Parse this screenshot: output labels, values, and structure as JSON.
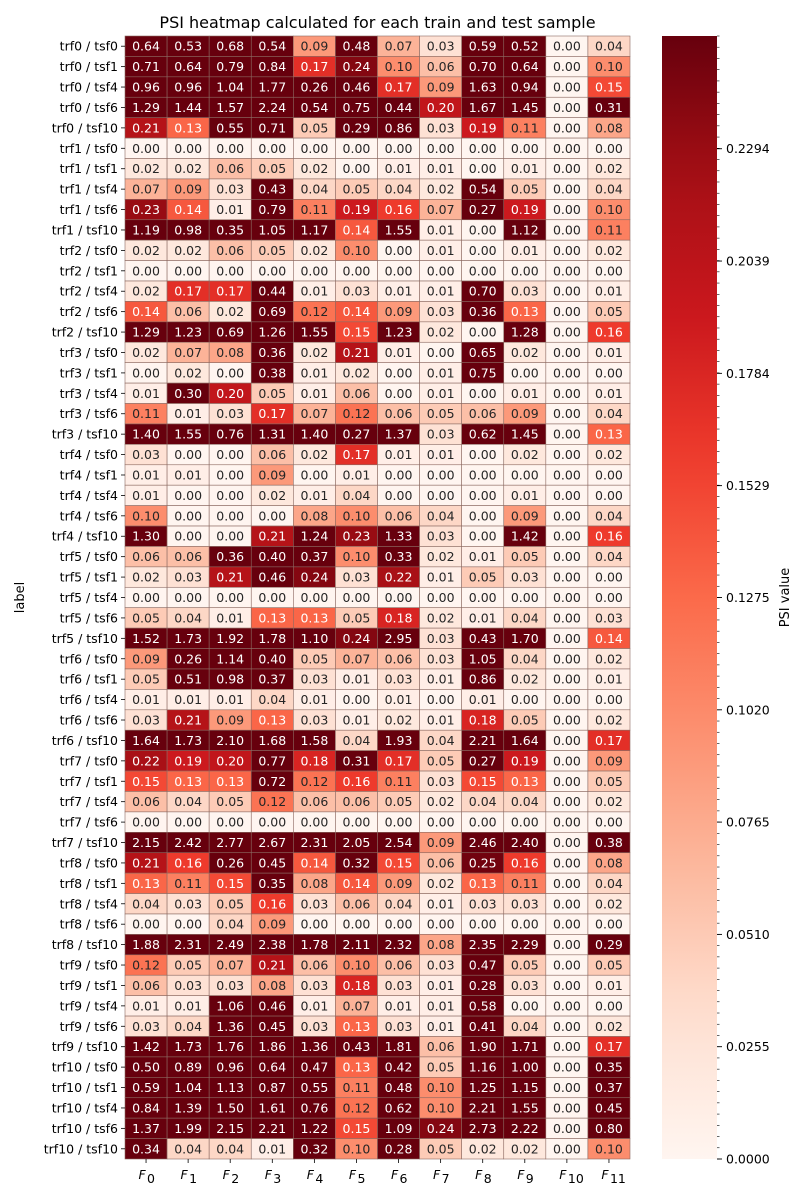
{
  "chart_data": {
    "type": "heatmap",
    "title": "PSI heatmap calculated for each train and test sample",
    "ylabel": "label",
    "colorbar_label": "PSI value",
    "colormap": "Reds",
    "vmin": 0.0,
    "vmax": 0.255,
    "colorbar_ticks": [
      "0.0000",
      "0.0255",
      "0.0510",
      "0.0765",
      "0.1020",
      "0.1275",
      "0.1529",
      "0.1784",
      "0.2039",
      "0.2294"
    ],
    "columns": [
      {
        "base": "F",
        "sub": "0"
      },
      {
        "base": "F",
        "sub": "1"
      },
      {
        "base": "F",
        "sub": "2"
      },
      {
        "base": "F",
        "sub": "3"
      },
      {
        "base": "F",
        "sub": "4"
      },
      {
        "base": "F",
        "sub": "5"
      },
      {
        "base": "F",
        "sub": "6"
      },
      {
        "base": "F",
        "sub": "7"
      },
      {
        "base": "F",
        "sub": "8"
      },
      {
        "base": "F",
        "sub": "9"
      },
      {
        "base": "F",
        "sub": "10"
      },
      {
        "base": "F",
        "sub": "11"
      }
    ],
    "rows": [
      {
        "label": "trf0 / tsf0",
        "values": [
          0.64,
          0.53,
          0.68,
          0.54,
          0.09,
          0.48,
          0.07,
          0.03,
          0.59,
          0.52,
          0.0,
          0.04
        ]
      },
      {
        "label": "trf0 / tsf1",
        "values": [
          0.71,
          0.64,
          0.79,
          0.84,
          0.17,
          0.24,
          0.1,
          0.06,
          0.7,
          0.64,
          0.0,
          0.1
        ]
      },
      {
        "label": "trf0 / tsf4",
        "values": [
          0.96,
          0.96,
          1.04,
          1.77,
          0.26,
          0.46,
          0.17,
          0.09,
          1.63,
          0.94,
          0.0,
          0.15
        ]
      },
      {
        "label": "trf0 / tsf6",
        "values": [
          1.29,
          1.44,
          1.57,
          2.24,
          0.54,
          0.75,
          0.44,
          0.2,
          1.67,
          1.45,
          0.0,
          0.31
        ]
      },
      {
        "label": "trf0 / tsf10",
        "values": [
          0.21,
          0.13,
          0.55,
          0.71,
          0.05,
          0.29,
          0.86,
          0.03,
          0.19,
          0.11,
          0.0,
          0.08
        ]
      },
      {
        "label": "trf1 / tsf0",
        "values": [
          0.0,
          0.0,
          0.0,
          0.0,
          0.0,
          0.0,
          0.0,
          0.0,
          0.0,
          0.0,
          0.0,
          0.0
        ]
      },
      {
        "label": "trf1 / tsf1",
        "values": [
          0.02,
          0.02,
          0.06,
          0.05,
          0.02,
          0.0,
          0.01,
          0.01,
          0.0,
          0.01,
          0.0,
          0.02
        ]
      },
      {
        "label": "trf1 / tsf4",
        "values": [
          0.07,
          0.09,
          0.03,
          0.43,
          0.04,
          0.05,
          0.04,
          0.02,
          0.54,
          0.05,
          0.0,
          0.04
        ]
      },
      {
        "label": "trf1 / tsf6",
        "values": [
          0.23,
          0.14,
          0.01,
          0.79,
          0.11,
          0.19,
          0.16,
          0.07,
          0.27,
          0.19,
          0.0,
          0.1
        ]
      },
      {
        "label": "trf1 / tsf10",
        "values": [
          1.19,
          0.98,
          0.35,
          1.05,
          1.17,
          0.14,
          1.55,
          0.01,
          0.0,
          1.12,
          0.0,
          0.11
        ]
      },
      {
        "label": "trf2 / tsf0",
        "values": [
          0.02,
          0.02,
          0.06,
          0.05,
          0.02,
          0.1,
          0.0,
          0.01,
          0.0,
          0.01,
          0.0,
          0.02
        ]
      },
      {
        "label": "trf2 / tsf1",
        "values": [
          0.0,
          0.0,
          0.0,
          0.0,
          0.0,
          0.0,
          0.0,
          0.0,
          0.0,
          0.0,
          0.0,
          0.0
        ]
      },
      {
        "label": "trf2 / tsf4",
        "values": [
          0.02,
          0.17,
          0.17,
          0.44,
          0.01,
          0.03,
          0.01,
          0.01,
          0.7,
          0.03,
          0.0,
          0.01
        ]
      },
      {
        "label": "trf2 / tsf6",
        "values": [
          0.14,
          0.06,
          0.02,
          0.69,
          0.12,
          0.14,
          0.09,
          0.03,
          0.36,
          0.13,
          0.0,
          0.05
        ]
      },
      {
        "label": "trf2 / tsf10",
        "values": [
          1.29,
          1.23,
          0.69,
          1.26,
          1.55,
          0.15,
          1.23,
          0.02,
          0.0,
          1.28,
          0.0,
          0.16
        ]
      },
      {
        "label": "trf3 / tsf0",
        "values": [
          0.02,
          0.07,
          0.08,
          0.36,
          0.02,
          0.21,
          0.01,
          0.0,
          0.65,
          0.02,
          0.0,
          0.01
        ]
      },
      {
        "label": "trf3 / tsf1",
        "values": [
          0.0,
          0.02,
          0.0,
          0.38,
          0.01,
          0.02,
          0.0,
          0.01,
          0.75,
          0.0,
          0.0,
          0.0
        ]
      },
      {
        "label": "trf3 / tsf4",
        "values": [
          0.01,
          0.3,
          0.2,
          0.05,
          0.01,
          0.06,
          0.0,
          0.01,
          0.0,
          0.01,
          0.0,
          0.01
        ]
      },
      {
        "label": "trf3 / tsf6",
        "values": [
          0.11,
          0.01,
          0.03,
          0.17,
          0.07,
          0.12,
          0.06,
          0.05,
          0.06,
          0.09,
          0.0,
          0.04
        ]
      },
      {
        "label": "trf3 / tsf10",
        "values": [
          1.4,
          1.55,
          0.76,
          1.31,
          1.4,
          0.27,
          1.37,
          0.03,
          0.62,
          1.45,
          0.0,
          0.13
        ]
      },
      {
        "label": "trf4 / tsf0",
        "values": [
          0.03,
          0.0,
          0.0,
          0.06,
          0.02,
          0.17,
          0.01,
          0.01,
          0.0,
          0.02,
          0.0,
          0.02
        ]
      },
      {
        "label": "trf4 / tsf1",
        "values": [
          0.01,
          0.01,
          0.0,
          0.09,
          0.0,
          0.01,
          0.0,
          0.0,
          0.0,
          0.0,
          0.0,
          0.0
        ]
      },
      {
        "label": "trf4 / tsf4",
        "values": [
          0.01,
          0.0,
          0.0,
          0.02,
          0.01,
          0.04,
          0.0,
          0.0,
          0.0,
          0.01,
          0.0,
          0.0
        ]
      },
      {
        "label": "trf4 / tsf6",
        "values": [
          0.1,
          0.0,
          0.0,
          0.0,
          0.08,
          0.1,
          0.06,
          0.04,
          0.0,
          0.09,
          0.0,
          0.04
        ]
      },
      {
        "label": "trf4 / tsf10",
        "values": [
          1.3,
          0.0,
          0.0,
          0.21,
          1.24,
          0.23,
          1.33,
          0.03,
          0.0,
          1.42,
          0.0,
          0.16
        ]
      },
      {
        "label": "trf5 / tsf0",
        "values": [
          0.06,
          0.06,
          0.36,
          0.4,
          0.37,
          0.1,
          0.33,
          0.02,
          0.01,
          0.05,
          0.0,
          0.04
        ]
      },
      {
        "label": "trf5 / tsf1",
        "values": [
          0.02,
          0.03,
          0.21,
          0.46,
          0.24,
          0.03,
          0.22,
          0.01,
          0.05,
          0.03,
          0.0,
          0.0
        ]
      },
      {
        "label": "trf5 / tsf4",
        "values": [
          0.0,
          0.0,
          0.0,
          0.0,
          0.0,
          0.0,
          0.0,
          0.0,
          0.0,
          0.0,
          0.0,
          0.0
        ]
      },
      {
        "label": "trf5 / tsf6",
        "values": [
          0.05,
          0.04,
          0.01,
          0.13,
          0.13,
          0.05,
          0.18,
          0.02,
          0.01,
          0.04,
          0.0,
          0.03
        ]
      },
      {
        "label": "trf5 / tsf10",
        "values": [
          1.52,
          1.73,
          1.92,
          1.78,
          1.1,
          0.24,
          2.95,
          0.03,
          0.43,
          1.7,
          0.0,
          0.14
        ]
      },
      {
        "label": "trf6 / tsf0",
        "values": [
          0.09,
          0.26,
          1.14,
          0.4,
          0.05,
          0.07,
          0.06,
          0.03,
          1.05,
          0.04,
          0.0,
          0.02
        ]
      },
      {
        "label": "trf6 / tsf1",
        "values": [
          0.05,
          0.51,
          0.98,
          0.37,
          0.03,
          0.01,
          0.03,
          0.01,
          0.86,
          0.02,
          0.0,
          0.01
        ]
      },
      {
        "label": "trf6 / tsf4",
        "values": [
          0.01,
          0.01,
          0.01,
          0.04,
          0.01,
          0.0,
          0.01,
          0.0,
          0.01,
          0.0,
          0.0,
          0.0
        ]
      },
      {
        "label": "trf6 / tsf6",
        "values": [
          0.03,
          0.21,
          0.09,
          0.13,
          0.03,
          0.01,
          0.02,
          0.01,
          0.18,
          0.05,
          0.0,
          0.02
        ]
      },
      {
        "label": "trf6 / tsf10",
        "values": [
          1.64,
          1.73,
          2.1,
          1.68,
          1.58,
          0.04,
          1.93,
          0.04,
          2.21,
          1.64,
          0.0,
          0.17
        ]
      },
      {
        "label": "trf7 / tsf0",
        "values": [
          0.22,
          0.19,
          0.2,
          0.77,
          0.18,
          0.31,
          0.17,
          0.05,
          0.27,
          0.19,
          0.0,
          0.09
        ]
      },
      {
        "label": "trf7 / tsf1",
        "values": [
          0.15,
          0.13,
          0.13,
          0.72,
          0.12,
          0.16,
          0.11,
          0.03,
          0.15,
          0.13,
          0.0,
          0.05
        ]
      },
      {
        "label": "trf7 / tsf4",
        "values": [
          0.06,
          0.04,
          0.05,
          0.12,
          0.06,
          0.06,
          0.05,
          0.02,
          0.04,
          0.04,
          0.0,
          0.02
        ]
      },
      {
        "label": "trf7 / tsf6",
        "values": [
          0.0,
          0.0,
          0.0,
          0.0,
          0.0,
          0.0,
          0.0,
          0.0,
          0.0,
          0.0,
          0.0,
          0.0
        ]
      },
      {
        "label": "trf7 / tsf10",
        "values": [
          2.15,
          2.42,
          2.77,
          2.67,
          2.31,
          2.05,
          2.54,
          0.09,
          2.46,
          2.4,
          0.0,
          0.38
        ]
      },
      {
        "label": "trf8 / tsf0",
        "values": [
          0.21,
          0.16,
          0.26,
          0.45,
          0.14,
          0.32,
          0.15,
          0.06,
          0.25,
          0.16,
          0.0,
          0.08
        ]
      },
      {
        "label": "trf8 / tsf1",
        "values": [
          0.13,
          0.11,
          0.15,
          0.35,
          0.08,
          0.14,
          0.09,
          0.02,
          0.13,
          0.11,
          0.0,
          0.04
        ]
      },
      {
        "label": "trf8 / tsf4",
        "values": [
          0.04,
          0.03,
          0.05,
          0.16,
          0.03,
          0.06,
          0.04,
          0.01,
          0.03,
          0.03,
          0.0,
          0.02
        ]
      },
      {
        "label": "trf8 / tsf6",
        "values": [
          0.0,
          0.0,
          0.04,
          0.09,
          0.0,
          0.0,
          0.0,
          0.0,
          0.0,
          0.0,
          0.0,
          0.0
        ]
      },
      {
        "label": "trf8 / tsf10",
        "values": [
          1.88,
          2.31,
          2.49,
          2.38,
          1.78,
          2.11,
          2.32,
          0.08,
          2.35,
          2.29,
          0.0,
          0.29
        ]
      },
      {
        "label": "trf9 / tsf0",
        "values": [
          0.12,
          0.05,
          0.07,
          0.21,
          0.06,
          0.1,
          0.06,
          0.03,
          0.47,
          0.05,
          0.0,
          0.05
        ]
      },
      {
        "label": "trf9 / tsf1",
        "values": [
          0.06,
          0.03,
          0.03,
          0.08,
          0.03,
          0.18,
          0.03,
          0.01,
          0.28,
          0.03,
          0.0,
          0.01
        ]
      },
      {
        "label": "trf9 / tsf4",
        "values": [
          0.01,
          0.01,
          1.06,
          0.46,
          0.01,
          0.07,
          0.01,
          0.01,
          0.58,
          0.0,
          0.0,
          0.0
        ]
      },
      {
        "label": "trf9 / tsf6",
        "values": [
          0.03,
          0.04,
          1.36,
          0.45,
          0.03,
          0.13,
          0.03,
          0.01,
          0.41,
          0.04,
          0.0,
          0.02
        ]
      },
      {
        "label": "trf9 / tsf10",
        "values": [
          1.42,
          1.73,
          1.76,
          1.86,
          1.36,
          0.43,
          1.81,
          0.06,
          1.9,
          1.71,
          0.0,
          0.17
        ]
      },
      {
        "label": "trf10 / tsf0",
        "values": [
          0.5,
          0.89,
          0.96,
          0.64,
          0.47,
          0.13,
          0.42,
          0.05,
          1.16,
          1.0,
          0.0,
          0.35
        ]
      },
      {
        "label": "trf10 / tsf1",
        "values": [
          0.59,
          1.04,
          1.13,
          0.87,
          0.55,
          0.11,
          0.48,
          0.1,
          1.25,
          1.15,
          0.0,
          0.37
        ]
      },
      {
        "label": "trf10 / tsf4",
        "values": [
          0.84,
          1.39,
          1.5,
          1.61,
          0.76,
          0.12,
          0.62,
          0.1,
          2.21,
          1.55,
          0.0,
          0.45
        ]
      },
      {
        "label": "trf10 / tsf6",
        "values": [
          1.37,
          1.99,
          2.15,
          2.21,
          1.22,
          0.15,
          1.09,
          0.24,
          2.73,
          2.22,
          0.0,
          0.8
        ]
      },
      {
        "label": "trf10 / tsf10",
        "values": [
          0.34,
          0.04,
          0.04,
          0.01,
          0.32,
          0.1,
          0.28,
          0.05,
          0.02,
          0.02,
          0.0,
          0.1
        ]
      }
    ]
  }
}
